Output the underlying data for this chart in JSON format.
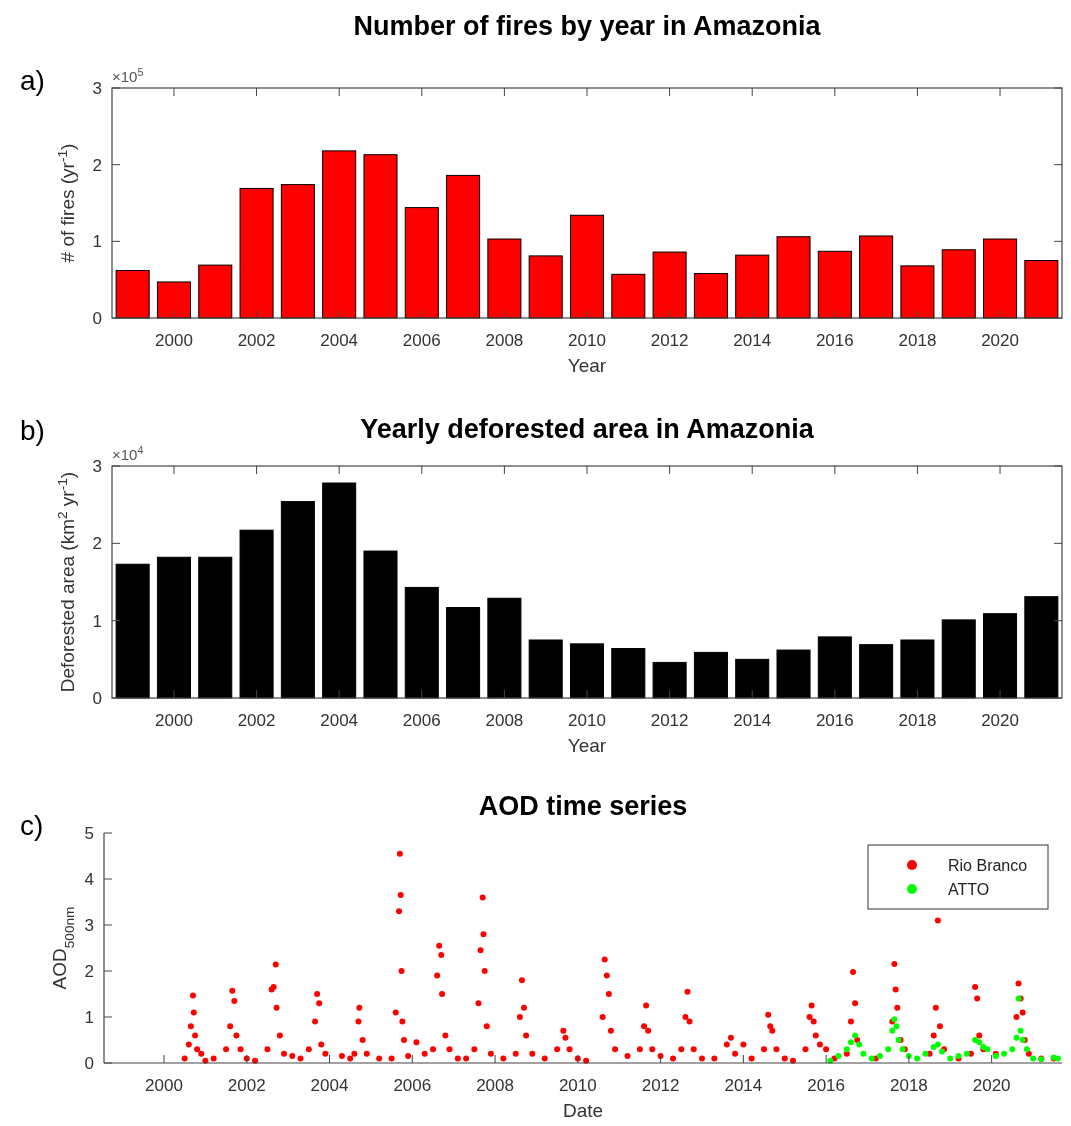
{
  "chart_data": [
    {
      "type": "bar",
      "title": "Number of fires by year in Amazonia",
      "xlabel": "Year",
      "ylabel": "# of fires (yr$^{-1}$)",
      "annotations": [
        "a)",
        "×10$^{5}$"
      ],
      "x": [
        1999,
        2000,
        2001,
        2002,
        2003,
        2004,
        2005,
        2006,
        2007,
        2008,
        2009,
        2010,
        2011,
        2012,
        2013,
        2014,
        2015,
        2016,
        2017,
        2018,
        2019,
        2020,
        2021
      ],
      "series": [
        {
          "color": "#ff0000",
          "values": [
            0.62,
            0.47,
            0.69,
            1.69,
            1.74,
            2.18,
            2.13,
            1.44,
            1.86,
            1.03,
            0.81,
            1.34,
            0.57,
            0.86,
            0.58,
            0.82,
            1.06,
            0.87,
            1.07,
            0.68,
            0.89,
            1.03,
            0.75
          ]
        }
      ],
      "xlim": [
        1998.5,
        2021.5
      ],
      "xticks": [
        2000,
        2002,
        2004,
        2006,
        2008,
        2010,
        2012,
        2014,
        2016,
        2018,
        2020
      ],
      "ylim": [
        0,
        3
      ],
      "yticks": [
        0,
        1,
        2,
        3
      ],
      "grid": false,
      "legend": false
    },
    {
      "type": "bar",
      "title": "Yearly deforested area in Amazonia",
      "xlabel": "Year",
      "ylabel": "Deforested area (km$^{2}$ yr$^{-1}$)",
      "annotations": [
        "b)",
        "×10$^{4}$"
      ],
      "x": [
        1999,
        2000,
        2001,
        2002,
        2003,
        2004,
        2005,
        2006,
        2007,
        2008,
        2009,
        2010,
        2011,
        2012,
        2013,
        2014,
        2015,
        2016,
        2017,
        2018,
        2019,
        2020,
        2021
      ],
      "series": [
        {
          "color": "#000000",
          "values": [
            1.73,
            1.82,
            1.82,
            2.17,
            2.54,
            2.78,
            1.9,
            1.43,
            1.17,
            1.29,
            0.75,
            0.7,
            0.64,
            0.46,
            0.59,
            0.5,
            0.62,
            0.79,
            0.69,
            0.75,
            1.01,
            1.09,
            1.31
          ]
        }
      ],
      "xlim": [
        1998.5,
        2021.5
      ],
      "xticks": [
        2000,
        2002,
        2004,
        2006,
        2008,
        2010,
        2012,
        2014,
        2016,
        2018,
        2020
      ],
      "ylim": [
        0,
        3
      ],
      "yticks": [
        0,
        1,
        2,
        3
      ],
      "grid": false,
      "legend": false
    },
    {
      "type": "scatter",
      "title": "AOD time series",
      "xlabel": "Date",
      "ylabel": "AOD$_{500nm}$",
      "annotations": [
        "c)"
      ],
      "marker": "circle",
      "legend": "top right",
      "grid": false,
      "xlim": [
        1998.55,
        2021.7
      ],
      "xticks": [
        2000,
        2002,
        2004,
        2006,
        2008,
        2010,
        2012,
        2014,
        2016,
        2018,
        2020
      ],
      "ylim": [
        0,
        5
      ],
      "yticks": [
        0,
        1,
        2,
        3,
        4,
        5
      ],
      "series": [
        {
          "name": "Rio Branco",
          "color": "#ff0000",
          "x": [
            2000.5,
            2000.6,
            2000.65,
            2000.7,
            2000.72,
            2000.75,
            2000.8,
            2000.9,
            2001.0,
            2001.2,
            2001.5,
            2001.6,
            2001.65,
            2001.7,
            2001.75,
            2001.85,
            2002.0,
            2002.2,
            2002.5,
            2002.6,
            2002.65,
            2002.7,
            2002.72,
            2002.8,
            2002.9,
            2003.1,
            2003.3,
            2003.5,
            2003.65,
            2003.7,
            2003.75,
            2003.8,
            2003.9,
            2004.3,
            2004.5,
            2004.6,
            2004.7,
            2004.72,
            2004.8,
            2004.9,
            2005.2,
            2005.5,
            2005.6,
            2005.68,
            2005.7,
            2005.72,
            2005.74,
            2005.76,
            2005.8,
            2005.9,
            2006.1,
            2006.3,
            2006.5,
            2006.6,
            2006.65,
            2006.7,
            2006.72,
            2006.8,
            2006.9,
            2007.1,
            2007.3,
            2007.5,
            2007.6,
            2007.65,
            2007.7,
            2007.72,
            2007.75,
            2007.8,
            2007.9,
            2008.2,
            2008.5,
            2008.6,
            2008.65,
            2008.7,
            2008.75,
            2008.9,
            2009.2,
            2009.5,
            2009.65,
            2009.7,
            2009.8,
            2010.0,
            2010.2,
            2010.6,
            2010.65,
            2010.7,
            2010.75,
            2010.8,
            2010.9,
            2011.2,
            2011.5,
            2011.6,
            2011.65,
            2011.7,
            2011.8,
            2012.0,
            2012.3,
            2012.5,
            2012.6,
            2012.65,
            2012.7,
            2012.8,
            2013.0,
            2013.3,
            2013.6,
            2013.7,
            2013.8,
            2014.0,
            2014.2,
            2014.5,
            2014.6,
            2014.65,
            2014.7,
            2014.8,
            2015.0,
            2015.2,
            2015.5,
            2015.6,
            2015.65,
            2015.7,
            2015.75,
            2015.85,
            2016.0,
            2016.2,
            2016.5,
            2016.6,
            2016.65,
            2016.7,
            2016.75,
            2017.2,
            2017.6,
            2017.65,
            2017.68,
            2017.72,
            2017.8,
            2017.9,
            2018.5,
            2018.6,
            2018.65,
            2018.7,
            2018.75,
            2018.85,
            2019.2,
            2019.5,
            2019.6,
            2019.65,
            2019.7,
            2019.8,
            2020.1,
            2020.6,
            2020.65,
            2020.7,
            2020.75,
            2020.8,
            2020.9,
            2021.2,
            2021.5
          ],
          "values": [
            0.1,
            0.4,
            0.8,
            1.47,
            1.1,
            0.6,
            0.3,
            0.2,
            0.05,
            0.1,
            0.3,
            0.8,
            1.57,
            1.35,
            0.6,
            0.3,
            0.1,
            0.05,
            0.3,
            1.6,
            1.65,
            2.14,
            1.2,
            0.6,
            0.2,
            0.15,
            0.1,
            0.3,
            0.9,
            1.5,
            1.3,
            0.4,
            0.2,
            0.15,
            0.1,
            0.2,
            0.9,
            1.2,
            0.5,
            0.2,
            0.1,
            0.1,
            1.1,
            3.3,
            4.55,
            3.65,
            2.0,
            0.9,
            0.5,
            0.15,
            0.45,
            0.2,
            0.3,
            1.9,
            2.55,
            2.35,
            1.5,
            0.6,
            0.3,
            0.1,
            0.1,
            0.3,
            1.3,
            2.45,
            3.6,
            2.8,
            2.0,
            0.8,
            0.2,
            0.1,
            0.2,
            1.0,
            1.8,
            1.2,
            0.6,
            0.2,
            0.1,
            0.3,
            0.7,
            0.55,
            0.3,
            0.1,
            0.05,
            1.0,
            2.25,
            1.9,
            1.5,
            0.7,
            0.3,
            0.15,
            0.3,
            0.8,
            1.25,
            0.7,
            0.3,
            0.15,
            0.1,
            0.3,
            1.0,
            1.55,
            0.9,
            0.3,
            0.1,
            0.1,
            0.4,
            0.55,
            0.2,
            0.4,
            0.1,
            0.3,
            1.05,
            0.8,
            0.7,
            0.3,
            0.1,
            0.05,
            0.3,
            1.0,
            1.25,
            0.9,
            0.6,
            0.4,
            0.3,
            0.1,
            0.2,
            0.9,
            1.98,
            1.3,
            0.5,
            0.1,
            0.9,
            2.15,
            1.6,
            1.2,
            0.5,
            0.3,
            0.2,
            0.6,
            1.2,
            3.1,
            0.8,
            0.3,
            0.1,
            0.2,
            1.65,
            1.4,
            0.6,
            0.3,
            0.2,
            1.0,
            1.73,
            1.4,
            1.1,
            0.5,
            0.2,
            0.1,
            0.1
          ]
        },
        {
          "name": "ATTO",
          "color": "#00ff00",
          "x": [
            2016.1,
            2016.3,
            2016.5,
            2016.6,
            2016.7,
            2016.8,
            2016.9,
            2017.1,
            2017.3,
            2017.5,
            2017.6,
            2017.65,
            2017.7,
            2017.75,
            2017.85,
            2018.0,
            2018.2,
            2018.4,
            2018.6,
            2018.7,
            2018.8,
            2019.0,
            2019.2,
            2019.4,
            2019.6,
            2019.7,
            2019.8,
            2019.9,
            2020.1,
            2020.3,
            2020.5,
            2020.6,
            2020.65,
            2020.7,
            2020.75,
            2020.85,
            2021.0,
            2021.2,
            2021.5,
            2021.6
          ],
          "values": [
            0.05,
            0.15,
            0.3,
            0.45,
            0.6,
            0.4,
            0.2,
            0.1,
            0.15,
            0.3,
            0.7,
            0.95,
            0.8,
            0.5,
            0.3,
            0.15,
            0.1,
            0.2,
            0.35,
            0.4,
            0.25,
            0.1,
            0.15,
            0.2,
            0.5,
            0.45,
            0.35,
            0.3,
            0.15,
            0.2,
            0.3,
            0.55,
            1.4,
            0.7,
            0.5,
            0.3,
            0.1,
            0.08,
            0.12,
            0.1
          ]
        }
      ]
    }
  ]
}
